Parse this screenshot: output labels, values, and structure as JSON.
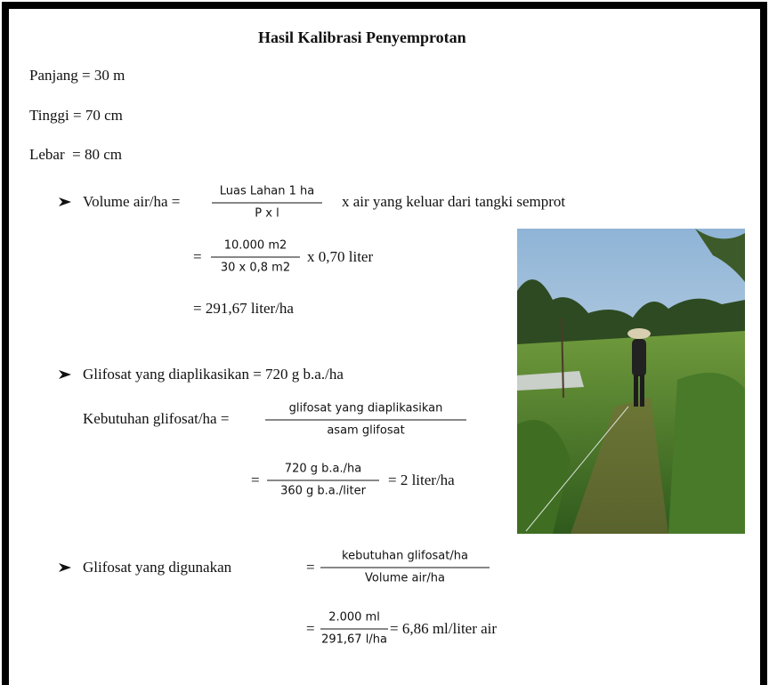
{
  "title": "Hasil Kalibrasi Penyemprotan",
  "dimensions": [
    "Panjang = 30 m",
    "Tinggi = 70 cm",
    "Lebar  = 80 cm"
  ],
  "volume": {
    "label": "Volume air/ha =",
    "fraction": {
      "numerator": "Luas Lahan 1 ha",
      "denominator": "P x l"
    },
    "suffix": "x air yang keluar dari tangki semprot",
    "step": {
      "equals": "=",
      "fraction": {
        "numerator": "10.000 m2",
        "denominator": "30 x 0,8 m2"
      },
      "suffix": "x 0,70 liter"
    },
    "result": "= 291,67 liter/ha"
  },
  "glifosat_applied": {
    "label": "Glifosat yang diaplikasikan = 720 g b.a./ha",
    "need_label": "Kebutuhan glifosat/ha =",
    "fraction": {
      "numerator": "glifosat yang diaplikasikan",
      "denominator": "asam glifosat"
    },
    "step": {
      "equals": "=",
      "fraction": {
        "numerator": "720 g b.a./ha",
        "denominator": "360 g b.a./liter"
      },
      "suffix": "= 2 liter/ha"
    }
  },
  "glifosat_used": {
    "label": "Glifosat yang digunakan",
    "equals": "=",
    "fraction": {
      "numerator": "kebutuhan glifosat/ha",
      "denominator": "Volume air/ha"
    },
    "step": {
      "equals": "=",
      "fraction": {
        "numerator": "2.000 ml",
        "denominator": "291,67 l/ha"
      },
      "suffix": "= 6,86 ml/liter air"
    }
  }
}
